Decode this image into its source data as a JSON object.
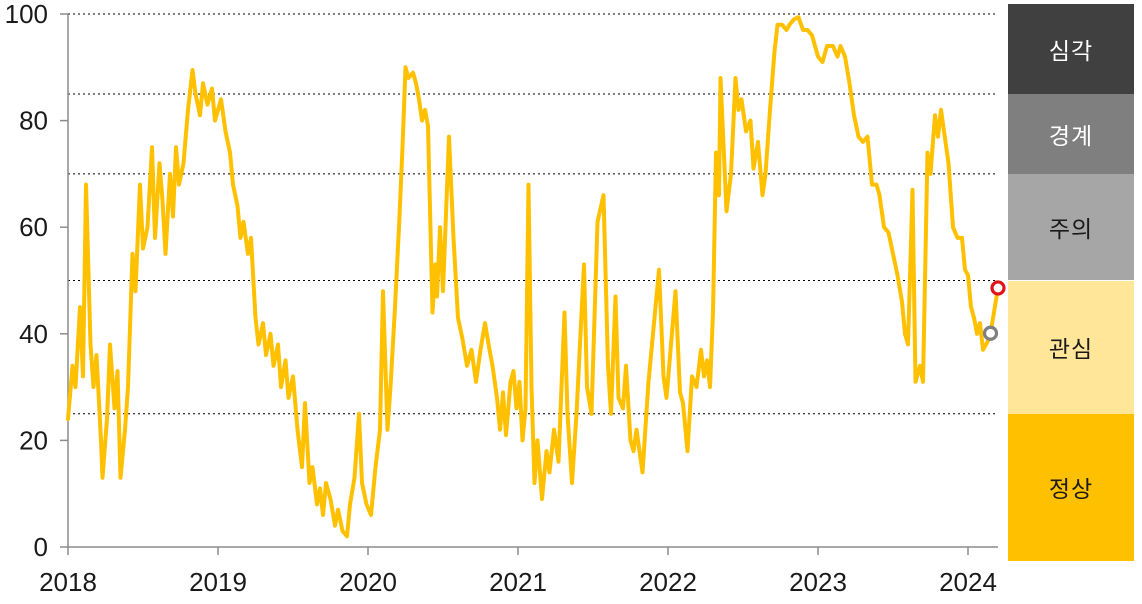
{
  "chart_data": {
    "type": "line",
    "title": "",
    "x_axis": {
      "ticks": [
        2018,
        2019,
        2020,
        2021,
        2022,
        2023,
        2024
      ],
      "range": [
        2018,
        2024.2
      ]
    },
    "y_axis": {
      "ticks": [
        0,
        20,
        40,
        60,
        80,
        100
      ],
      "range": [
        0,
        100
      ]
    },
    "reference_lines": [
      25,
      50,
      70,
      85,
      100
    ],
    "grid": "dotted-horizontal",
    "colors": {
      "line": "#FFC000",
      "grid": "#000000",
      "axis": "#8C8C8C",
      "text": "#1A1A1A",
      "background": "#FFFFFF"
    },
    "series": [
      {
        "name": "index",
        "color": "#FFC000",
        "points": [
          [
            2018.0,
            24
          ],
          [
            2018.03,
            34
          ],
          [
            2018.05,
            30
          ],
          [
            2018.08,
            45
          ],
          [
            2018.1,
            32
          ],
          [
            2018.12,
            68
          ],
          [
            2018.15,
            38
          ],
          [
            2018.17,
            30
          ],
          [
            2018.19,
            36
          ],
          [
            2018.22,
            20
          ],
          [
            2018.23,
            13
          ],
          [
            2018.26,
            24
          ],
          [
            2018.28,
            38
          ],
          [
            2018.31,
            26
          ],
          [
            2018.33,
            33
          ],
          [
            2018.35,
            13
          ],
          [
            2018.38,
            22
          ],
          [
            2018.4,
            30
          ],
          [
            2018.43,
            55
          ],
          [
            2018.45,
            48
          ],
          [
            2018.48,
            68
          ],
          [
            2018.5,
            56
          ],
          [
            2018.53,
            60
          ],
          [
            2018.56,
            75
          ],
          [
            2018.58,
            58
          ],
          [
            2018.61,
            72
          ],
          [
            2018.63,
            65
          ],
          [
            2018.65,
            55
          ],
          [
            2018.68,
            70
          ],
          [
            2018.7,
            62
          ],
          [
            2018.72,
            75
          ],
          [
            2018.74,
            68
          ],
          [
            2018.77,
            72
          ],
          [
            2018.8,
            82
          ],
          [
            2018.83,
            89.5
          ],
          [
            2018.85,
            85
          ],
          [
            2018.88,
            81
          ],
          [
            2018.9,
            87
          ],
          [
            2018.93,
            83
          ],
          [
            2018.96,
            86
          ],
          [
            2018.98,
            80
          ],
          [
            2019.02,
            84
          ],
          [
            2019.05,
            78
          ],
          [
            2019.08,
            74
          ],
          [
            2019.1,
            68
          ],
          [
            2019.13,
            64
          ],
          [
            2019.15,
            58
          ],
          [
            2019.17,
            61
          ],
          [
            2019.2,
            55
          ],
          [
            2019.22,
            58
          ],
          [
            2019.25,
            43
          ],
          [
            2019.27,
            38
          ],
          [
            2019.3,
            42
          ],
          [
            2019.32,
            36
          ],
          [
            2019.35,
            40
          ],
          [
            2019.37,
            34
          ],
          [
            2019.4,
            38
          ],
          [
            2019.42,
            30
          ],
          [
            2019.45,
            35
          ],
          [
            2019.47,
            28
          ],
          [
            2019.5,
            32
          ],
          [
            2019.53,
            22
          ],
          [
            2019.56,
            15
          ],
          [
            2019.58,
            27
          ],
          [
            2019.61,
            12
          ],
          [
            2019.63,
            15
          ],
          [
            2019.66,
            8
          ],
          [
            2019.68,
            11
          ],
          [
            2019.7,
            6
          ],
          [
            2019.72,
            12
          ],
          [
            2019.75,
            9
          ],
          [
            2019.78,
            4
          ],
          [
            2019.8,
            7
          ],
          [
            2019.83,
            3
          ],
          [
            2019.86,
            2
          ],
          [
            2019.88,
            8
          ],
          [
            2019.91,
            13
          ],
          [
            2019.94,
            25
          ],
          [
            2019.96,
            12
          ],
          [
            2019.99,
            8
          ],
          [
            2020.02,
            6
          ],
          [
            2020.05,
            15
          ],
          [
            2020.08,
            22
          ],
          [
            2020.1,
            48
          ],
          [
            2020.13,
            22
          ],
          [
            2020.15,
            30
          ],
          [
            2020.18,
            45
          ],
          [
            2020.21,
            62
          ],
          [
            2020.23,
            75
          ],
          [
            2020.25,
            90
          ],
          [
            2020.27,
            88
          ],
          [
            2020.3,
            89
          ],
          [
            2020.32,
            87
          ],
          [
            2020.34,
            84
          ],
          [
            2020.36,
            80
          ],
          [
            2020.38,
            82
          ],
          [
            2020.4,
            79
          ],
          [
            2020.43,
            44
          ],
          [
            2020.45,
            53
          ],
          [
            2020.46,
            47
          ],
          [
            2020.48,
            60
          ],
          [
            2020.5,
            48
          ],
          [
            2020.54,
            77
          ],
          [
            2020.57,
            58
          ],
          [
            2020.6,
            43
          ],
          [
            2020.63,
            39
          ],
          [
            2020.66,
            34
          ],
          [
            2020.69,
            37
          ],
          [
            2020.72,
            31
          ],
          [
            2020.75,
            37
          ],
          [
            2020.78,
            42
          ],
          [
            2020.81,
            37
          ],
          [
            2020.83,
            34
          ],
          [
            2020.86,
            28
          ],
          [
            2020.88,
            22
          ],
          [
            2020.9,
            29
          ],
          [
            2020.92,
            21
          ],
          [
            2020.95,
            31
          ],
          [
            2020.97,
            33
          ],
          [
            2020.99,
            26
          ],
          [
            2021.01,
            31
          ],
          [
            2021.03,
            20
          ],
          [
            2021.05,
            26
          ],
          [
            2021.07,
            68
          ],
          [
            2021.09,
            30
          ],
          [
            2021.11,
            12
          ],
          [
            2021.13,
            20
          ],
          [
            2021.16,
            9
          ],
          [
            2021.19,
            18
          ],
          [
            2021.21,
            14
          ],
          [
            2021.24,
            22
          ],
          [
            2021.27,
            16
          ],
          [
            2021.31,
            44
          ],
          [
            2021.33,
            25
          ],
          [
            2021.36,
            12
          ],
          [
            2021.39,
            25
          ],
          [
            2021.44,
            53
          ],
          [
            2021.46,
            30
          ],
          [
            2021.49,
            25
          ],
          [
            2021.53,
            61
          ],
          [
            2021.57,
            66
          ],
          [
            2021.6,
            34
          ],
          [
            2021.62,
            25
          ],
          [
            2021.65,
            47
          ],
          [
            2021.67,
            28
          ],
          [
            2021.7,
            26
          ],
          [
            2021.72,
            34
          ],
          [
            2021.75,
            20
          ],
          [
            2021.77,
            18
          ],
          [
            2021.79,
            22
          ],
          [
            2021.83,
            14
          ],
          [
            2021.87,
            31
          ],
          [
            2021.94,
            52
          ],
          [
            2021.97,
            32
          ],
          [
            2021.99,
            28
          ],
          [
            2022.05,
            48
          ],
          [
            2022.08,
            29
          ],
          [
            2022.1,
            27
          ],
          [
            2022.13,
            18
          ],
          [
            2022.16,
            32
          ],
          [
            2022.19,
            30
          ],
          [
            2022.22,
            37
          ],
          [
            2022.24,
            32
          ],
          [
            2022.26,
            35
          ],
          [
            2022.28,
            30
          ],
          [
            2022.3,
            44
          ],
          [
            2022.32,
            74
          ],
          [
            2022.34,
            66
          ],
          [
            2022.35,
            88
          ],
          [
            2022.39,
            63
          ],
          [
            2022.42,
            70
          ],
          [
            2022.45,
            88
          ],
          [
            2022.47,
            82
          ],
          [
            2022.49,
            84
          ],
          [
            2022.52,
            78
          ],
          [
            2022.55,
            80
          ],
          [
            2022.57,
            71
          ],
          [
            2022.6,
            76
          ],
          [
            2022.63,
            66
          ],
          [
            2022.65,
            70
          ],
          [
            2022.68,
            82
          ],
          [
            2022.71,
            93
          ],
          [
            2022.73,
            98
          ],
          [
            2022.76,
            98
          ],
          [
            2022.79,
            97
          ],
          [
            2022.81,
            98
          ],
          [
            2022.84,
            99
          ],
          [
            2022.87,
            99.4
          ],
          [
            2022.9,
            97
          ],
          [
            2022.93,
            97
          ],
          [
            2022.96,
            96
          ],
          [
            2023.0,
            92
          ],
          [
            2023.03,
            91
          ],
          [
            2023.06,
            94
          ],
          [
            2023.1,
            94
          ],
          [
            2023.13,
            92
          ],
          [
            2023.15,
            94
          ],
          [
            2023.18,
            92
          ],
          [
            2023.21,
            87
          ],
          [
            2023.24,
            81
          ],
          [
            2023.27,
            77
          ],
          [
            2023.3,
            76
          ],
          [
            2023.33,
            77
          ],
          [
            2023.36,
            68
          ],
          [
            2023.39,
            68
          ],
          [
            2023.41,
            66
          ],
          [
            2023.44,
            60
          ],
          [
            2023.47,
            59
          ],
          [
            2023.5,
            55
          ],
          [
            2023.53,
            51
          ],
          [
            2023.56,
            46
          ],
          [
            2023.58,
            40
          ],
          [
            2023.6,
            38
          ],
          [
            2023.63,
            67
          ],
          [
            2023.65,
            31
          ],
          [
            2023.68,
            34
          ],
          [
            2023.7,
            31
          ],
          [
            2023.73,
            74
          ],
          [
            2023.75,
            70
          ],
          [
            2023.78,
            81
          ],
          [
            2023.8,
            77
          ],
          [
            2023.82,
            82
          ],
          [
            2023.85,
            76
          ],
          [
            2023.87,
            72
          ],
          [
            2023.9,
            60
          ],
          [
            2023.93,
            58
          ],
          [
            2023.96,
            58
          ],
          [
            2023.98,
            52
          ],
          [
            2024.0,
            51
          ],
          [
            2024.02,
            45
          ],
          [
            2024.04,
            43
          ],
          [
            2024.06,
            40
          ],
          [
            2024.08,
            42
          ],
          [
            2024.1,
            37
          ],
          [
            2024.13,
            38.5
          ],
          [
            2024.15,
            40.1
          ],
          [
            2024.2,
            48.6
          ]
        ]
      }
    ],
    "markers": [
      {
        "name": "previous",
        "t": 2024.15,
        "v": 40.1,
        "color": "#7F7F7F"
      },
      {
        "name": "latest",
        "t": 2024.2,
        "v": 48.6,
        "color": "#E0131B"
      }
    ],
    "legend": {
      "position": "right",
      "items": [
        {
          "label": "심각",
          "from": 85,
          "to": 100,
          "bg": "#404040",
          "fg": "#FFFFFF"
        },
        {
          "label": "경계",
          "from": 70,
          "to": 85,
          "bg": "#7F7F7F",
          "fg": "#FFFFFF"
        },
        {
          "label": "주의",
          "from": 50,
          "to": 70,
          "bg": "#A6A6A6",
          "fg": "#1A1A1A"
        },
        {
          "label": "관심",
          "from": 25,
          "to": 50,
          "bg": "#FFE699",
          "fg": "#1A1A1A"
        },
        {
          "label": "정상",
          "from": 0,
          "to": 25,
          "bg": "#FFC000",
          "fg": "#1A1A1A"
        }
      ]
    }
  }
}
